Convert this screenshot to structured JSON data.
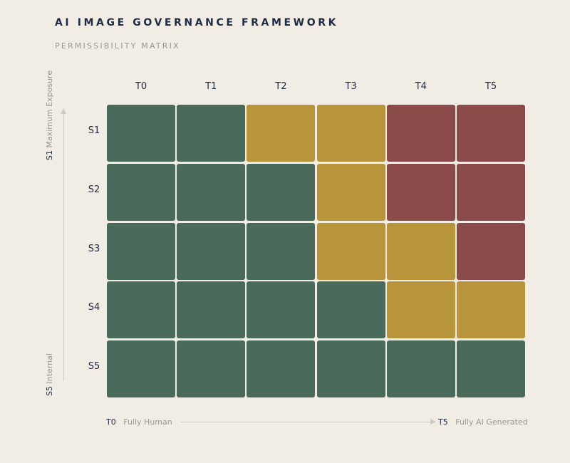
{
  "title": "AI IMAGE GOVERNANCE FRAMEWORK",
  "subtitle": "PERMISSIBILITY MATRIX",
  "colors": {
    "green": "#4a6b5b",
    "yellow": "#b8953b",
    "red": "#8b4b4a"
  },
  "columns": [
    "T0",
    "T1",
    "T2",
    "T3",
    "T4",
    "T5"
  ],
  "rows": [
    "S1",
    "S2",
    "S3",
    "S4",
    "S5"
  ],
  "matrix": [
    [
      "green",
      "green",
      "yellow",
      "yellow",
      "red",
      "red"
    ],
    [
      "green",
      "green",
      "green",
      "yellow",
      "red",
      "red"
    ],
    [
      "green",
      "green",
      "green",
      "yellow",
      "yellow",
      "red"
    ],
    [
      "green",
      "green",
      "green",
      "green",
      "yellow",
      "yellow"
    ],
    [
      "green",
      "green",
      "green",
      "green",
      "green",
      "green"
    ]
  ],
  "v_axis": {
    "top_code": "S1",
    "top_label": "Maximum Exposure",
    "bottom_code": "S5",
    "bottom_label": "Internal"
  },
  "h_axis": {
    "left_code": "T0",
    "left_label": "Fully Human",
    "right_code": "T5",
    "right_label": "Fully AI Generated"
  }
}
